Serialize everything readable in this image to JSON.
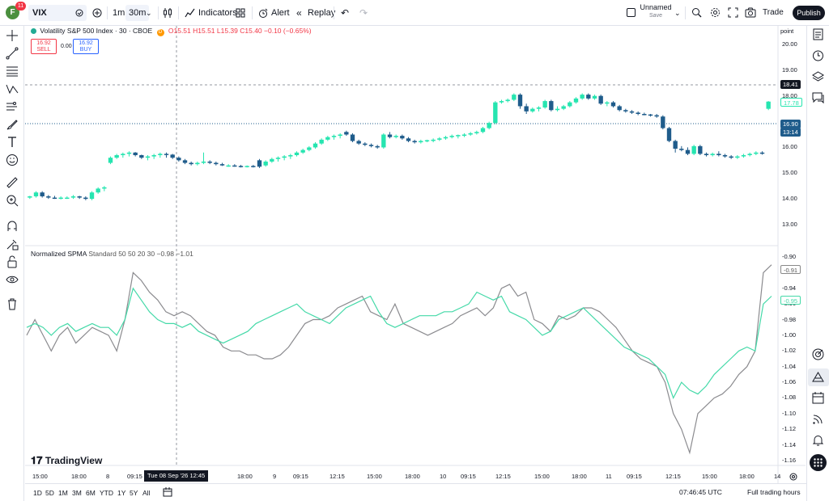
{
  "topbar": {
    "avatar_letter": "F",
    "notification_count": "11",
    "symbol": "VIX",
    "intervals": [
      "1m",
      "30m"
    ],
    "indicators_label": "Indicators",
    "alert_label": "Alert",
    "replay_label": "Replay",
    "layout_name": "Unnamed",
    "layout_save": "Save",
    "trade_label": "Trade",
    "publish_label": "Publish"
  },
  "legend": {
    "title": "Volatility S&P 500 Index · 30 · CBOE",
    "d_badge": "D",
    "ohlc": "O15.51 H15.51 L15.39 C15.40 −0.10 (−0.65%)",
    "sell_price": "16.92",
    "sell_label": "SELL",
    "spread": "0.00",
    "buy_price": "16.92",
    "buy_label": "BUY"
  },
  "indicator": {
    "name": "Normalized SPMA",
    "params": "Standard 50 50 20 30",
    "values": "−0.98  −1.01"
  },
  "logo": "TradingView",
  "price_axis": {
    "unit": "point",
    "ticks": [
      "20.00",
      "19.00",
      "18.00",
      "17.00",
      "16.00",
      "15.00",
      "14.00",
      "13.00"
    ],
    "crosshair_price": "18.41",
    "current_price": "17.78",
    "last_price": "16.90",
    "countdown": "13:14"
  },
  "indicator_axis": {
    "ticks": [
      "-0.90",
      "-0.92",
      "-0.94",
      "-0.96",
      "-0.98",
      "-1.00",
      "-1.02",
      "-1.04",
      "-1.06",
      "-1.08",
      "-1.10",
      "-1.12",
      "-1.14",
      "-1.16"
    ],
    "tag_gray": "-0.91",
    "tag_green": "-0.95"
  },
  "time_axis": {
    "labels": [
      "15:00",
      "18:00",
      "8",
      "09:15",
      "12:15",
      "18:00",
      "9",
      "09:15",
      "12:15",
      "15:00",
      "18:00",
      "10",
      "09:15",
      "12:15",
      "15:00",
      "18:00",
      "11",
      "09:15",
      "12:15",
      "15:00",
      "18:00",
      "14"
    ],
    "crosshair_date": "Tue 08 Sep '26   12:45"
  },
  "bottombar": {
    "ranges": [
      "1D",
      "5D",
      "1M",
      "3M",
      "6M",
      "YTD",
      "1Y",
      "5Y",
      "All"
    ],
    "clock": "07:46:45 UTC",
    "session": "Full trading hours"
  },
  "colors": {
    "up": "#26e5b0",
    "down": "#1f5c8b",
    "gray_line": "#8b8b8f",
    "green_line": "#44d9a8",
    "blue_line": "#5d86b3"
  },
  "chart_data": {
    "type": "candlestick",
    "symbol": "VIX",
    "interval": "30",
    "ylim": [
      12.3,
      20.5
    ],
    "candles": [
      [
        14.05,
        14.12,
        14.0,
        14.1
      ],
      [
        14.1,
        14.3,
        14.05,
        14.25
      ],
      [
        14.25,
        14.3,
        14.05,
        14.1
      ],
      [
        14.1,
        14.15,
        14.0,
        14.05
      ],
      [
        14.05,
        14.12,
        14.0,
        14.02
      ],
      [
        14.02,
        14.1,
        13.98,
        14.05
      ],
      [
        14.05,
        14.1,
        14.0,
        14.05
      ],
      [
        14.05,
        14.15,
        14.0,
        14.1
      ],
      [
        14.1,
        14.12,
        14.0,
        14.05
      ],
      [
        14.05,
        14.1,
        13.95,
        14.0
      ],
      [
        14.0,
        14.3,
        13.95,
        14.25
      ],
      [
        14.25,
        14.45,
        14.2,
        14.4
      ],
      [
        14.4,
        14.5,
        14.3,
        14.45
      ],
      [
        15.4,
        15.65,
        15.35,
        15.6
      ],
      [
        15.6,
        15.75,
        15.55,
        15.7
      ],
      [
        15.7,
        15.8,
        15.6,
        15.75
      ],
      [
        15.75,
        15.85,
        15.65,
        15.8
      ],
      [
        15.8,
        15.82,
        15.65,
        15.7
      ],
      [
        15.7,
        15.72,
        15.55,
        15.6
      ],
      [
        15.6,
        15.7,
        15.5,
        15.65
      ],
      [
        15.65,
        15.75,
        15.55,
        15.7
      ],
      [
        15.7,
        15.8,
        15.6,
        15.75
      ],
      [
        15.75,
        15.8,
        15.6,
        15.72
      ],
      [
        15.72,
        15.75,
        15.55,
        15.6
      ],
      [
        15.6,
        15.65,
        15.45,
        15.5
      ],
      [
        15.5,
        15.55,
        15.35,
        15.4
      ],
      [
        15.4,
        15.45,
        15.3,
        15.35
      ],
      [
        15.35,
        15.45,
        15.3,
        15.4
      ],
      [
        15.4,
        15.8,
        15.35,
        15.45
      ],
      [
        15.45,
        15.5,
        15.35,
        15.4
      ],
      [
        15.4,
        15.45,
        15.3,
        15.35
      ],
      [
        15.35,
        15.4,
        15.28,
        15.3
      ],
      [
        15.3,
        15.35,
        15.25,
        15.3
      ],
      [
        15.3,
        15.35,
        15.25,
        15.28
      ],
      [
        15.28,
        15.32,
        15.22,
        15.26
      ],
      [
        15.26,
        15.3,
        15.22,
        15.28
      ],
      [
        15.28,
        15.32,
        15.22,
        15.25
      ],
      [
        15.5,
        15.55,
        15.2,
        15.25
      ],
      [
        15.3,
        15.5,
        15.25,
        15.45
      ],
      [
        15.45,
        15.6,
        15.4,
        15.55
      ],
      [
        15.55,
        15.65,
        15.45,
        15.6
      ],
      [
        15.6,
        15.7,
        15.5,
        15.65
      ],
      [
        15.65,
        15.75,
        15.55,
        15.7
      ],
      [
        15.7,
        15.85,
        15.65,
        15.8
      ],
      [
        15.8,
        15.95,
        15.75,
        15.9
      ],
      [
        15.9,
        16.05,
        15.85,
        16.0
      ],
      [
        16.0,
        16.2,
        15.95,
        16.15
      ],
      [
        16.15,
        16.35,
        16.1,
        16.3
      ],
      [
        16.3,
        16.45,
        16.25,
        16.4
      ],
      [
        16.4,
        16.5,
        16.3,
        16.45
      ],
      [
        16.45,
        16.55,
        16.35,
        16.5
      ],
      [
        16.6,
        16.65,
        16.45,
        16.5
      ],
      [
        16.5,
        16.55,
        16.2,
        16.25
      ],
      [
        16.25,
        16.3,
        16.1,
        16.15
      ],
      [
        16.15,
        16.2,
        16.05,
        16.1
      ],
      [
        16.1,
        16.15,
        16.0,
        16.05
      ],
      [
        16.05,
        16.1,
        15.95,
        16.0
      ],
      [
        16.0,
        16.55,
        15.95,
        16.5
      ],
      [
        16.5,
        16.6,
        16.35,
        16.4
      ],
      [
        16.4,
        16.5,
        16.35,
        16.45
      ],
      [
        16.45,
        16.5,
        16.3,
        16.35
      ],
      [
        16.35,
        16.4,
        16.2,
        16.25
      ],
      [
        16.25,
        16.3,
        16.15,
        16.2
      ],
      [
        16.2,
        16.3,
        16.15,
        16.25
      ],
      [
        16.25,
        16.3,
        16.2,
        16.28
      ],
      [
        16.28,
        16.35,
        16.2,
        16.3
      ],
      [
        16.3,
        16.4,
        16.25,
        16.35
      ],
      [
        16.35,
        16.45,
        16.3,
        16.4
      ],
      [
        16.4,
        16.5,
        16.35,
        16.45
      ],
      [
        16.45,
        16.5,
        16.35,
        16.48
      ],
      [
        16.48,
        16.55,
        16.4,
        16.5
      ],
      [
        16.5,
        16.6,
        16.45,
        16.55
      ],
      [
        16.55,
        16.65,
        16.5,
        16.6
      ],
      [
        16.6,
        16.8,
        16.55,
        16.75
      ],
      [
        16.75,
        17.0,
        16.7,
        16.95
      ],
      [
        16.95,
        17.8,
        16.9,
        17.75
      ],
      [
        17.75,
        17.85,
        17.7,
        17.8
      ],
      [
        17.8,
        17.9,
        17.75,
        17.85
      ],
      [
        17.85,
        18.1,
        17.8,
        18.05
      ],
      [
        18.05,
        18.1,
        17.5,
        17.6
      ],
      [
        17.6,
        17.7,
        17.3,
        17.4
      ],
      [
        17.4,
        17.55,
        17.35,
        17.5
      ],
      [
        17.5,
        17.6,
        17.4,
        17.55
      ],
      [
        17.55,
        17.85,
        17.5,
        17.8
      ],
      [
        17.8,
        17.85,
        17.4,
        17.45
      ],
      [
        17.45,
        17.6,
        17.4,
        17.5
      ],
      [
        17.5,
        17.65,
        17.45,
        17.6
      ],
      [
        17.6,
        17.8,
        17.55,
        17.75
      ],
      [
        17.75,
        17.95,
        17.7,
        17.9
      ],
      [
        17.9,
        18.1,
        17.85,
        18.05
      ],
      [
        18.05,
        18.1,
        17.85,
        17.9
      ],
      [
        17.9,
        18.05,
        17.85,
        18.0
      ],
      [
        18.0,
        18.05,
        17.65,
        17.7
      ],
      [
        17.7,
        17.8,
        17.6,
        17.75
      ],
      [
        17.75,
        17.8,
        17.55,
        17.6
      ],
      [
        17.6,
        17.65,
        17.4,
        17.45
      ],
      [
        17.45,
        17.5,
        17.35,
        17.4
      ],
      [
        17.4,
        17.45,
        17.3,
        17.35
      ],
      [
        17.35,
        17.4,
        17.25,
        17.3
      ],
      [
        17.3,
        17.35,
        17.25,
        17.28
      ],
      [
        17.28,
        17.3,
        17.2,
        17.25
      ],
      [
        17.25,
        17.3,
        17.15,
        17.2
      ],
      [
        17.2,
        17.25,
        16.7,
        16.75
      ],
      [
        16.75,
        16.8,
        16.2,
        16.25
      ],
      [
        16.25,
        16.3,
        15.8,
        15.95
      ],
      [
        15.95,
        16.05,
        15.85,
        15.9
      ],
      [
        15.9,
        16.0,
        15.7,
        15.75
      ],
      [
        15.75,
        16.1,
        15.7,
        16.05
      ],
      [
        16.05,
        16.1,
        15.7,
        15.75
      ],
      [
        15.75,
        15.8,
        15.65,
        15.7
      ],
      [
        15.7,
        15.8,
        15.65,
        15.75
      ],
      [
        15.75,
        15.85,
        15.65,
        15.7
      ],
      [
        15.7,
        15.75,
        15.6,
        15.65
      ],
      [
        15.65,
        15.7,
        15.55,
        15.6
      ],
      [
        15.6,
        15.7,
        15.55,
        15.65
      ],
      [
        15.65,
        15.75,
        15.6,
        15.7
      ],
      [
        15.7,
        15.8,
        15.65,
        15.75
      ],
      [
        15.75,
        15.85,
        15.7,
        15.8
      ],
      [
        15.8,
        15.85,
        15.72,
        15.78
      ],
      [
        17.5,
        17.8,
        17.45,
        17.78
      ]
    ],
    "indicator_series": [
      {
        "color": "gray",
        "values": [
          -1.0,
          -0.98,
          -1.0,
          -1.02,
          -1.0,
          -0.99,
          -1.01,
          -1.0,
          -0.99,
          -0.995,
          -1.0,
          -1.02,
          -0.98,
          -0.92,
          -0.93,
          -0.945,
          -0.955,
          -0.97,
          -0.975,
          -0.97,
          -0.975,
          -0.985,
          -0.995,
          -1.0,
          -1.015,
          -1.02,
          -1.02,
          -1.025,
          -1.025,
          -1.03,
          -1.03,
          -1.025,
          -1.015,
          -1.0,
          -0.985,
          -0.98,
          -0.98,
          -0.975,
          -0.965,
          -0.96,
          -0.955,
          -0.95,
          -0.97,
          -0.975,
          -0.98,
          -0.96,
          -0.985,
          -0.99,
          -0.995,
          -1.0,
          -0.995,
          -0.99,
          -0.985,
          -0.975,
          -0.97,
          -0.965,
          -0.975,
          -0.965,
          -0.94,
          -0.935,
          -0.95,
          -0.945,
          -0.98,
          -0.985,
          -0.995,
          -0.975,
          -0.98,
          -0.975,
          -0.965,
          -0.965,
          -0.97,
          -0.98,
          -0.99,
          -1.005,
          -1.02,
          -1.03,
          -1.035,
          -1.04,
          -1.06,
          -1.1,
          -1.12,
          -1.15,
          -1.1,
          -1.09,
          -1.08,
          -1.075,
          -1.065,
          -1.05,
          -1.04,
          -1.02,
          -0.92,
          -0.91
        ]
      },
      {
        "color": "green-blue",
        "values": [
          -0.99,
          -0.985,
          -0.99,
          -1.0,
          -0.99,
          -0.985,
          -0.995,
          -0.99,
          -0.985,
          -0.99,
          -0.99,
          -1.0,
          -0.98,
          -0.94,
          -0.955,
          -0.97,
          -0.98,
          -0.985,
          -0.985,
          -0.99,
          -0.985,
          -0.995,
          -1.0,
          -1.005,
          -1.01,
          -1.005,
          -1.0,
          -0.995,
          -0.985,
          -0.98,
          -0.975,
          -0.97,
          -0.965,
          -0.96,
          -0.97,
          -0.975,
          -0.98,
          -0.985,
          -0.975,
          -0.965,
          -0.96,
          -0.955,
          -0.95,
          -0.97,
          -0.985,
          -0.99,
          -0.985,
          -0.98,
          -0.975,
          -0.975,
          -0.975,
          -0.97,
          -0.97,
          -0.965,
          -0.96,
          -0.945,
          -0.95,
          -0.955,
          -0.95,
          -0.97,
          -0.975,
          -0.98,
          -0.99,
          -1.0,
          -0.995,
          -0.98,
          -0.975,
          -0.97,
          -0.965,
          -0.975,
          -0.985,
          -0.995,
          -1.005,
          -1.015,
          -1.02,
          -1.025,
          -1.03,
          -1.04,
          -1.05,
          -1.08,
          -1.06,
          -1.07,
          -1.075,
          -1.065,
          -1.05,
          -1.04,
          -1.03,
          -1.02,
          -1.015,
          -1.02,
          -0.96,
          -0.95
        ]
      }
    ]
  }
}
